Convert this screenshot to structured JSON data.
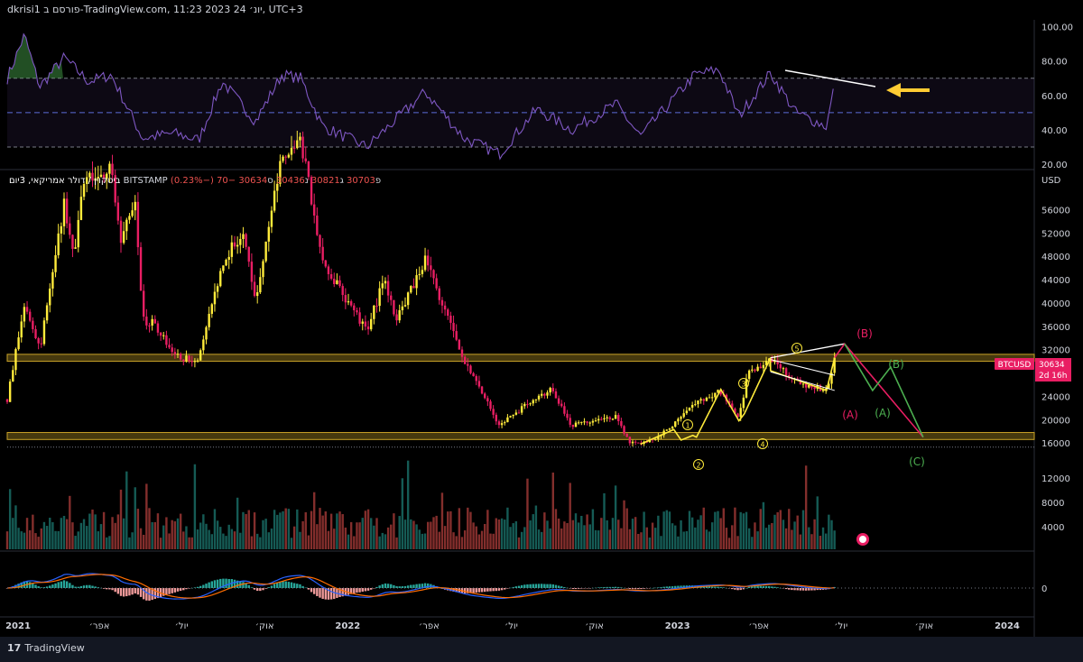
{
  "header": {
    "title": "dkrisi1 פורסם ב-TradingView.com, 11:23 2023 יונ׳ 24, UTC+3"
  },
  "footer": {
    "brand": "TradingView"
  },
  "legend": {
    "symbol_text": "ביטקוין / דולר אמריקאי, 3יום",
    "exchange": "BITSTAMP",
    "o_label": "פ",
    "o_value": "30703",
    "h_label": "ג",
    "h_value": "30821",
    "l_label": "נ",
    "l_value": "30436",
    "c_label": "ס",
    "c_value": "30634",
    "change": "−70 (−0.23%)"
  },
  "price_tag": {
    "symbol": "BTCUSD",
    "value": "30634",
    "countdown": "2d 16h"
  },
  "rsi_axis": {
    "ticks": [
      "100.00",
      "80.00",
      "60.00",
      "40.00",
      "20.00"
    ]
  },
  "price_axis": {
    "unit": "USD",
    "ticks": [
      "56000",
      "52000",
      "48000",
      "44000",
      "40000",
      "36000",
      "32000",
      "28000",
      "24000",
      "20000",
      "16000",
      "12000",
      "8000",
      "4000"
    ]
  },
  "macd_axis": {
    "ticks": [
      "0"
    ]
  },
  "time_axis": {
    "labels": [
      "2021",
      "אפר׳",
      "יול׳",
      "אוק׳",
      "2022",
      "אפר׳",
      "יול׳",
      "אוק׳",
      "2023",
      "אפר׳",
      "יול׳",
      "אוק׳",
      "2024"
    ]
  },
  "wave_labels": {
    "w1": "1",
    "w2": "2",
    "w3": "3",
    "w4": "4",
    "w5": "5",
    "a_red": "(A)",
    "b_red": "(B)",
    "a_green": "(A)",
    "b_green": "(B)",
    "c_green": "(C)"
  },
  "colors": {
    "bg": "#000000",
    "bull": "#ffeb3b",
    "bear": "#e91e63",
    "rsi": "#7e57c2",
    "zone": "#c9a227",
    "macd_line": "#2962ff",
    "signal_line": "#ff6d00",
    "green": "#4caf50",
    "wave_yellow": "#ffeb3b",
    "label_red": "#e91e63"
  },
  "chart_data": {
    "type": "candlestick",
    "symbol": "BTCUSD",
    "interval": "3D",
    "close_path": [
      [
        "2020-12-20",
        23500
      ],
      [
        "2021-01-08",
        40000
      ],
      [
        "2021-01-25",
        32000
      ],
      [
        "2021-02-21",
        57000
      ],
      [
        "2021-03-05",
        48000
      ],
      [
        "2021-03-13",
        61000
      ],
      [
        "2021-04-14",
        63000
      ],
      [
        "2021-04-25",
        50000
      ],
      [
        "2021-05-10",
        58000
      ],
      [
        "2021-05-19",
        37000
      ],
      [
        "2021-06-01",
        36500
      ],
      [
        "2021-06-22",
        31000
      ],
      [
        "2021-07-20",
        30000
      ],
      [
        "2021-08-15",
        47000
      ],
      [
        "2021-09-06",
        52000
      ],
      [
        "2021-09-21",
        41000
      ],
      [
        "2021-10-20",
        65000
      ],
      [
        "2021-11-10",
        68000
      ],
      [
        "2021-12-04",
        47000
      ],
      [
        "2022-01-22",
        35000
      ],
      [
        "2022-02-10",
        44000
      ],
      [
        "2022-02-24",
        37000
      ],
      [
        "2022-03-28",
        47500
      ],
      [
        "2022-05-10",
        30000
      ],
      [
        "2022-06-18",
        19000
      ],
      [
        "2022-07-29",
        24000
      ],
      [
        "2022-08-14",
        25000
      ],
      [
        "2022-09-06",
        19000
      ],
      [
        "2022-10-25",
        20500
      ],
      [
        "2022-11-09",
        16000
      ],
      [
        "2022-11-21",
        15800
      ],
      [
        "2022-12-15",
        17500
      ],
      [
        "2023-01-20",
        22500
      ],
      [
        "2023-02-16",
        25000
      ],
      [
        "2023-03-10",
        20000
      ],
      [
        "2023-03-20",
        28000
      ],
      [
        "2023-04-14",
        30400
      ],
      [
        "2023-05-12",
        26500
      ],
      [
        "2023-06-15",
        25000
      ],
      [
        "2023-06-24",
        30634
      ]
    ],
    "support_zone": [
      16600,
      17800
    ],
    "resistance_zone": [
      30000,
      31200
    ],
    "projection": {
      "red": [
        [
          "2023-06-24",
          30634
        ],
        [
          "2023-07-05",
          33000
        ],
        [
          "2023-09-30",
          17000
        ]
      ],
      "green": [
        [
          "2023-07-05",
          33000
        ],
        [
          "2023-08-05",
          25000
        ],
        [
          "2023-08-25",
          29000
        ],
        [
          "2023-09-30",
          17000
        ]
      ]
    },
    "rsi_path": [
      [
        "2020-12-20",
        70
      ],
      [
        "2021-01-08",
        95
      ],
      [
        "2021-01-25",
        65
      ],
      [
        "2021-02-21",
        82
      ],
      [
        "2021-03-20",
        68
      ],
      [
        "2021-04-14",
        72
      ],
      [
        "2021-05-19",
        35
      ],
      [
        "2021-06-22",
        38
      ],
      [
        "2021-07-20",
        34
      ],
      [
        "2021-08-15",
        68
      ],
      [
        "2021-09-21",
        45
      ],
      [
        "2021-10-20",
        72
      ],
      [
        "2021-11-10",
        70
      ],
      [
        "2021-12-04",
        42
      ],
      [
        "2022-01-22",
        30
      ],
      [
        "2022-03-28",
        62
      ],
      [
        "2022-05-10",
        35
      ],
      [
        "2022-06-18",
        26
      ],
      [
        "2022-07-29",
        52
      ],
      [
        "2022-09-06",
        40
      ],
      [
        "2022-10-25",
        55
      ],
      [
        "2022-11-21",
        36
      ],
      [
        "2023-01-20",
        72
      ],
      [
        "2023-02-16",
        75
      ],
      [
        "2023-03-10",
        48
      ],
      [
        "2023-04-14",
        73
      ],
      [
        "2023-05-12",
        50
      ],
      [
        "2023-06-15",
        42
      ],
      [
        "2023-06-24",
        66
      ]
    ],
    "volume_max": 15000,
    "macd_range": [
      -1,
      1
    ]
  }
}
